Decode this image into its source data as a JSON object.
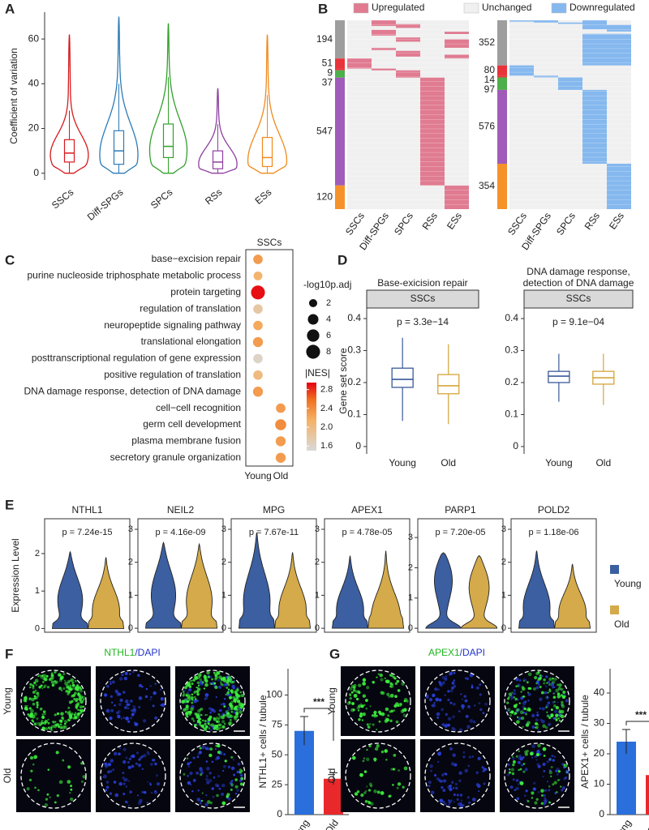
{
  "chart_data": [
    {
      "type": "violin",
      "label": "A",
      "ylabel": "Coefficient of variation",
      "categories": [
        "SSCs",
        "Diff-SPGs",
        "SPCs",
        "RSs",
        "ESs"
      ],
      "colors": [
        "#d7191c",
        "#2c7bb6",
        "#33a02c",
        "#8e3fa0",
        "#f08a1c"
      ],
      "ylim": [
        -3,
        72
      ],
      "yticks": [
        0,
        20,
        40,
        60
      ],
      "min": [
        0,
        0,
        0,
        0,
        0
      ],
      "q1": [
        5,
        4,
        7,
        2,
        3
      ],
      "median": [
        9,
        10,
        12,
        5,
        7
      ],
      "q3": [
        15,
        19,
        22,
        10,
        16
      ],
      "whisker_high": [
        28,
        40,
        43,
        22,
        35
      ],
      "max": [
        62,
        70,
        67,
        38,
        62
      ]
    },
    {
      "type": "heatmap",
      "label": "B",
      "legend": [
        {
          "name": "Upregulated",
          "color": "#e07b91"
        },
        {
          "name": "Unchanged",
          "color": "#f0f0f0"
        },
        {
          "name": "Downregulated",
          "color": "#85b8ee"
        }
      ],
      "categories": [
        "SSCs",
        "Diff-SPGs",
        "SPCs",
        "RSs",
        "ESs"
      ],
      "group_colors": [
        "#9e9e9e",
        "#e8333a",
        "#e8333a",
        "#4daf4a",
        "#a05cb8",
        "#f6922a"
      ],
      "panels": [
        {
          "counts": [
            194,
            51,
            9,
            37,
            547,
            120
          ]
        },
        {
          "counts": [
            352,
            80,
            14,
            97,
            576,
            354
          ]
        }
      ]
    },
    {
      "type": "dot",
      "label": "C",
      "title": "SSCs",
      "terms": [
        "base−excision repair",
        "purine nucleoside triphosphate metabolic process",
        "protein targeting",
        "regulation of translation",
        "neuropeptide signaling pathway",
        "translational elongation",
        "posttranscriptional regulation of gene expression",
        "positive regulation of translation",
        "DNA damage response, detection of DNA damage",
        "cell−cell recognition",
        "germ cell development",
        "plasma membrane fusion",
        "secretory granule organization"
      ],
      "series": [
        {
          "name": "Young",
          "size": [
            3,
            2.5,
            8,
            3,
            3,
            3.5,
            3,
            3,
            3.5,
            null,
            null,
            null,
            null
          ],
          "nes": [
            2.3,
            2.1,
            2.9,
            1.8,
            2.2,
            2.3,
            1.6,
            2.0,
            2.3,
            null,
            null,
            null,
            null
          ]
        },
        {
          "name": "Old",
          "size": [
            null,
            null,
            null,
            null,
            null,
            null,
            null,
            null,
            null,
            3,
            4.5,
            3.5,
            3.5
          ],
          "nes": [
            null,
            null,
            null,
            null,
            null,
            null,
            null,
            null,
            null,
            2.3,
            2.4,
            2.3,
            2.3
          ]
        }
      ],
      "size_title": "-log10p.adj",
      "size_ticks": [
        2,
        4,
        6,
        8
      ],
      "color_title": "|NES|",
      "color_ticks": [
        1.6,
        {
          "value": 2,
          "label": "2.0"
        },
        2.4,
        2.8
      ],
      "colorlim": [
        1.5,
        2.95
      ]
    },
    {
      "type": "box",
      "label": "D",
      "ylabel": "Gene set score",
      "categories": [
        "Young",
        "Old"
      ],
      "colors": [
        "#3a5a9a",
        "#d4a53a"
      ],
      "ylim": [
        -0.023,
        0.433
      ],
      "yticks": [
        0,
        0.1,
        0.2,
        0.3,
        0.4
      ],
      "panels": [
        {
          "title": [
            "Base-exicision repair"
          ],
          "strip": "SSCs",
          "p_label": "p = 3.3e−14",
          "min": [
            0.08,
            0.07
          ],
          "q1": [
            0.185,
            0.165
          ],
          "median": [
            0.21,
            0.19
          ],
          "q3": [
            0.245,
            0.225
          ],
          "max": [
            0.34,
            0.32
          ]
        },
        {
          "title": [
            "DNA damage response,",
            "detection of DNA damage"
          ],
          "strip": "SSCs",
          "p_label": "p = 9.1e−04",
          "min": [
            0.14,
            0.13
          ],
          "q1": [
            0.2,
            0.195
          ],
          "median": [
            0.22,
            0.215
          ],
          "q3": [
            0.235,
            0.235
          ],
          "max": [
            0.29,
            0.29
          ]
        }
      ]
    },
    {
      "type": "violin",
      "label": "E",
      "ylabel": "Expression Level",
      "series": [
        {
          "name": "Young",
          "color": "#3b5fa0"
        },
        {
          "name": "Old",
          "color": "#d4aa4a"
        }
      ],
      "panels": [
        {
          "title": "NTHL1",
          "p_label": "p = 7.24e-15",
          "ylim": [
            -0.1,
            2.93
          ],
          "yticks": [
            0,
            1,
            2
          ],
          "max": [
            2.05,
            1.9
          ],
          "mode": [
            0.9,
            0.6
          ]
        },
        {
          "title": "NEIL2",
          "p_label": "p = 4.16e-09",
          "ylim": [
            -0.12,
            3.32
          ],
          "yticks": [
            0,
            1,
            2,
            3
          ],
          "max": [
            2.6,
            2.55
          ],
          "mode": [
            1.2,
            1.0
          ]
        },
        {
          "title": "MPG",
          "p_label": "p = 7.67e-11",
          "ylim": [
            -0.12,
            3.32
          ],
          "yticks": [
            0,
            1,
            2,
            3
          ],
          "max": [
            2.9,
            2.3
          ],
          "mode": [
            1.0,
            0.7
          ]
        },
        {
          "title": "APEX1",
          "p_label": "p = 4.78e-05",
          "ylim": [
            -0.12,
            3.32
          ],
          "yticks": [
            0,
            1,
            2,
            3
          ],
          "max": [
            2.2,
            2.35
          ],
          "mode": [
            0.7,
            0.5
          ]
        },
        {
          "title": "PARP1",
          "p_label": "p = 7.20e-05",
          "ylim": [
            -0.13,
            3.62
          ],
          "yticks": [
            0,
            1,
            2,
            3
          ],
          "max": [
            2.5,
            2.4
          ],
          "mode": [
            1.9,
            1.6
          ]
        },
        {
          "title": "POLD2",
          "p_label": "p = 1.18e-06",
          "ylim": [
            -0.12,
            3.32
          ],
          "yticks": [
            0,
            1,
            2,
            3
          ],
          "max": [
            2.35,
            1.95
          ],
          "mode": [
            0.8,
            0.6
          ]
        }
      ]
    },
    {
      "type": "bar",
      "label": "F",
      "image_title": {
        "marker": "NTHL1",
        "stain": "/DAPI"
      },
      "rows": [
        "Young",
        "Old"
      ],
      "ylabel": "NTHL1+ cells / tubule",
      "categories": [
        "Young",
        "Old"
      ],
      "colors": [
        "#2a6fdb",
        "#e8282b"
      ],
      "values": [
        70,
        30
      ],
      "errors": [
        12,
        5
      ],
      "ylim": [
        0,
        122
      ],
      "yticks": [
        0,
        25,
        50,
        75,
        100
      ],
      "significance": "***"
    },
    {
      "type": "bar",
      "label": "G",
      "image_title": {
        "marker": "APEX1",
        "stain": "/DAPI"
      },
      "rows": [
        "Young",
        "Old"
      ],
      "ylabel": "APEX1+ cells / tubule",
      "categories": [
        "Young",
        "Old"
      ],
      "colors": [
        "#2a6fdb",
        "#e8282b"
      ],
      "values": [
        24,
        13
      ],
      "errors": [
        4,
        3
      ],
      "ylim": [
        0,
        48
      ],
      "yticks": [
        0,
        10,
        20,
        30,
        40
      ],
      "significance": "***"
    }
  ]
}
